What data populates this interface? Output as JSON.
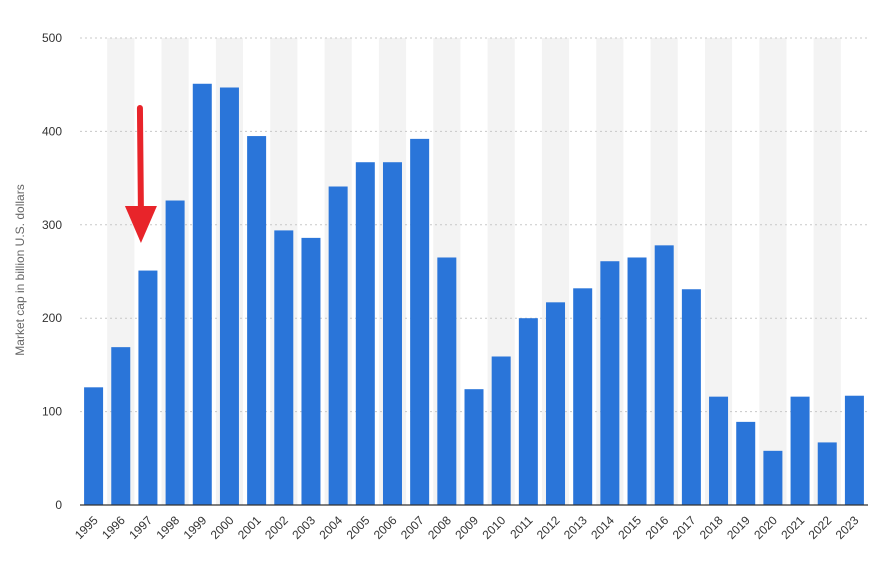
{
  "chart_data": {
    "type": "bar",
    "title": "",
    "xlabel": "",
    "ylabel": "Market cap in billion U.S. dollars",
    "ylim": [
      0,
      500
    ],
    "yticks": [
      0,
      100,
      200,
      300,
      400,
      500
    ],
    "grid": true,
    "legend": "none",
    "categories": [
      "1995",
      "1996",
      "1997",
      "1998",
      "1999",
      "2000",
      "2001",
      "2002",
      "2003",
      "2004",
      "2005",
      "2006",
      "2007",
      "2008",
      "2009",
      "2010",
      "2011",
      "2012",
      "2013",
      "2014",
      "2015",
      "2016",
      "2017",
      "2018",
      "2019",
      "2020",
      "2021",
      "2022",
      "2023"
    ],
    "values": [
      126,
      169,
      251,
      326,
      451,
      447,
      395,
      294,
      286,
      341,
      367,
      367,
      392,
      265,
      124,
      159,
      200,
      217,
      232,
      261,
      265,
      278,
      231,
      116,
      89,
      58,
      116,
      67,
      117
    ],
    "bar_color": "#2a75d9",
    "band_color": "#f3f3f3",
    "annotation": {
      "type": "arrow",
      "points_to_category": "1997",
      "color": "#e8242a"
    }
  }
}
